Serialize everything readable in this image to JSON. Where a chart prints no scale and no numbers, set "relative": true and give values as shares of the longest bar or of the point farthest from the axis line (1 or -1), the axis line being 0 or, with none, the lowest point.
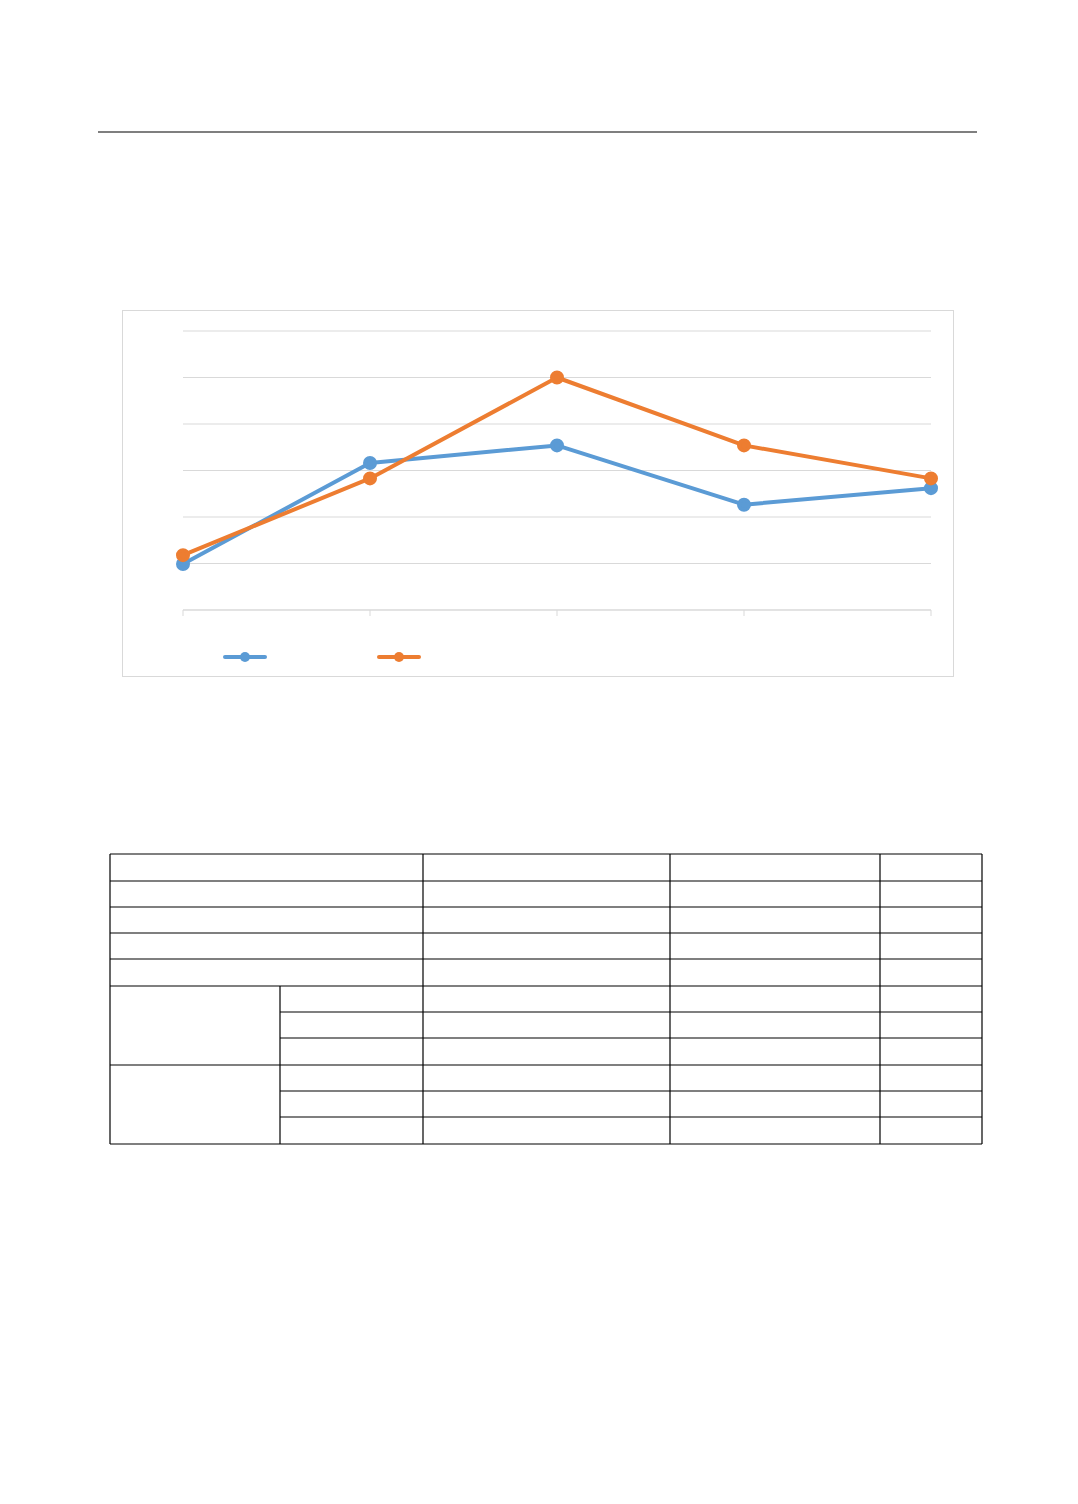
{
  "chart_data": {
    "type": "line",
    "relative": true,
    "categories": [
      null,
      null,
      null,
      null,
      null
    ],
    "series": [
      {
        "color": "#5b9bd5",
        "values": [
          0.198,
          0.632,
          0.708,
          0.453,
          0.524
        ]
      },
      {
        "color": "#ed7d31",
        "values": [
          0.236,
          0.566,
          1,
          0.708,
          0.566
        ]
      }
    ],
    "grid": "y",
    "marker": "circle",
    "line_style": "solid"
  }
}
